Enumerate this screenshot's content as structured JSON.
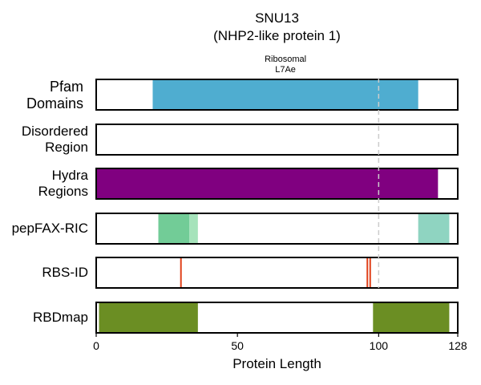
{
  "title": "SNU13",
  "subtitle": "(NHP2-like protein 1)",
  "chart_data": {
    "type": "track",
    "xlabel": "Protein Length",
    "xlim": [
      0,
      128
    ],
    "xticks": [
      0,
      50,
      100,
      128
    ],
    "reference_line_x": 100,
    "tracks": [
      {
        "label_lines": [
          "Pfam",
          "Domains"
        ],
        "features": [
          {
            "start": 20,
            "end": 114,
            "color": "#4fadd0",
            "name": "Ribosomal L7Ae",
            "name_lines": [
              "Ribosomal",
              "L7Ae"
            ]
          }
        ]
      },
      {
        "label_lines": [
          "Disordered",
          "Region"
        ],
        "features": []
      },
      {
        "label_lines": [
          "Hydra",
          "Regions"
        ],
        "features": [
          {
            "start": 0,
            "end": 121,
            "color": "#800080"
          }
        ]
      },
      {
        "label_lines": [
          "pepFAX-RIC"
        ],
        "features": [
          {
            "start": 22,
            "end": 33,
            "color": "#72cc97"
          },
          {
            "start": 33,
            "end": 36,
            "color": "#a6e3bb"
          },
          {
            "start": 114,
            "end": 125,
            "color": "#8fd4c1"
          }
        ]
      },
      {
        "label_lines": [
          "RBS-ID"
        ],
        "features": [
          {
            "start": 30,
            "end": 30,
            "color": "#e0401a",
            "kind": "line"
          },
          {
            "start": 96,
            "end": 96,
            "color": "#e0401a",
            "kind": "line"
          },
          {
            "start": 97,
            "end": 97,
            "color": "#e0401a",
            "kind": "line"
          }
        ]
      },
      {
        "label_lines": [
          "RBDmap"
        ],
        "features": [
          {
            "start": 1,
            "end": 36,
            "color": "#6b8e23"
          },
          {
            "start": 98,
            "end": 125,
            "color": "#6b8e23"
          }
        ]
      }
    ]
  }
}
